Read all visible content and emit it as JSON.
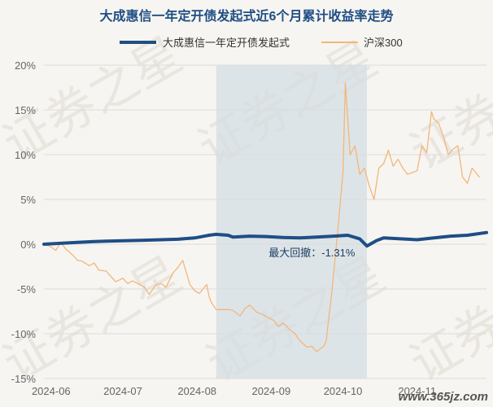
{
  "chart_data": {
    "type": "line",
    "title": "大成惠信一年定开债发起式近6个月累计收益率走势",
    "legend_position": "top-center",
    "grid": "horizontal",
    "ylim": [
      -15,
      20
    ],
    "y_ticks": [
      "20%",
      "15%",
      "10%",
      "5%",
      "0%",
      "-5%",
      "-10%",
      "-15%"
    ],
    "x_ticks": [
      "2024-06",
      "2024-07",
      "2024-08",
      "2024-09",
      "2024-10",
      "2024-11"
    ],
    "x_range": [
      "2024-05-29",
      "2024-11-30"
    ],
    "series": [
      {
        "name": "大成惠信一年定开债发起式",
        "color": "#1f4e85",
        "points": [
          [
            "2024-05-29",
            0.0
          ],
          [
            "2024-06-05",
            0.1
          ],
          [
            "2024-06-12",
            0.2
          ],
          [
            "2024-06-19",
            0.3
          ],
          [
            "2024-06-26",
            0.35
          ],
          [
            "2024-07-03",
            0.4
          ],
          [
            "2024-07-10",
            0.45
          ],
          [
            "2024-07-17",
            0.5
          ],
          [
            "2024-07-24",
            0.55
          ],
          [
            "2024-07-31",
            0.7
          ],
          [
            "2024-08-06",
            1.0
          ],
          [
            "2024-08-09",
            1.1
          ],
          [
            "2024-08-14",
            1.0
          ],
          [
            "2024-08-16",
            0.8
          ],
          [
            "2024-08-23",
            0.9
          ],
          [
            "2024-08-30",
            0.85
          ],
          [
            "2024-09-06",
            0.75
          ],
          [
            "2024-09-13",
            0.7
          ],
          [
            "2024-09-20",
            0.8
          ],
          [
            "2024-09-27",
            0.9
          ],
          [
            "2024-10-03",
            1.0
          ],
          [
            "2024-10-08",
            0.6
          ],
          [
            "2024-10-11",
            -0.2
          ],
          [
            "2024-10-15",
            0.4
          ],
          [
            "2024-10-18",
            0.7
          ],
          [
            "2024-10-25",
            0.6
          ],
          [
            "2024-11-01",
            0.5
          ],
          [
            "2024-11-08",
            0.7
          ],
          [
            "2024-11-15",
            0.9
          ],
          [
            "2024-11-22",
            1.0
          ],
          [
            "2024-11-30",
            1.3
          ]
        ]
      },
      {
        "name": "沪深300",
        "color": "#f3b67a",
        "points": [
          [
            "2024-05-29",
            0.0
          ],
          [
            "2024-06-01",
            -0.3
          ],
          [
            "2024-06-03",
            -0.7
          ],
          [
            "2024-06-05",
            0.2
          ],
          [
            "2024-06-07",
            -0.5
          ],
          [
            "2024-06-10",
            -1.2
          ],
          [
            "2024-06-12",
            -1.8
          ],
          [
            "2024-06-14",
            -1.9
          ],
          [
            "2024-06-17",
            -2.4
          ],
          [
            "2024-06-19",
            -2.1
          ],
          [
            "2024-06-21",
            -2.9
          ],
          [
            "2024-06-24",
            -3.0
          ],
          [
            "2024-06-26",
            -3.6
          ],
          [
            "2024-06-28",
            -4.2
          ],
          [
            "2024-07-01",
            -3.8
          ],
          [
            "2024-07-03",
            -4.4
          ],
          [
            "2024-07-05",
            -4.1
          ],
          [
            "2024-07-08",
            -4.5
          ],
          [
            "2024-07-10",
            -4.8
          ],
          [
            "2024-07-12",
            -5.6
          ],
          [
            "2024-07-15",
            -4.5
          ],
          [
            "2024-07-17",
            -4.4
          ],
          [
            "2024-07-19",
            -4.8
          ],
          [
            "2024-07-22",
            -3.2
          ],
          [
            "2024-07-24",
            -2.6
          ],
          [
            "2024-07-26",
            -1.8
          ],
          [
            "2024-07-29",
            -4.5
          ],
          [
            "2024-07-31",
            -5.2
          ],
          [
            "2024-08-02",
            -5.5
          ],
          [
            "2024-08-05",
            -4.5
          ],
          [
            "2024-08-06",
            -5.8
          ],
          [
            "2024-08-07",
            -6.5
          ],
          [
            "2024-08-09",
            -7.3
          ],
          [
            "2024-08-14",
            -7.3
          ],
          [
            "2024-08-16",
            -7.4
          ],
          [
            "2024-08-19",
            -8.0
          ],
          [
            "2024-08-21",
            -7.2
          ],
          [
            "2024-08-23",
            -6.8
          ],
          [
            "2024-08-26",
            -7.6
          ],
          [
            "2024-08-28",
            -7.8
          ],
          [
            "2024-08-30",
            -8.1
          ],
          [
            "2024-09-02",
            -8.5
          ],
          [
            "2024-09-04",
            -9.2
          ],
          [
            "2024-09-06",
            -8.8
          ],
          [
            "2024-09-09",
            -9.6
          ],
          [
            "2024-09-11",
            -10.0
          ],
          [
            "2024-09-13",
            -10.8
          ],
          [
            "2024-09-16",
            -11.5
          ],
          [
            "2024-09-18",
            -11.4
          ],
          [
            "2024-09-20",
            -12.0
          ],
          [
            "2024-09-23",
            -11.4
          ],
          [
            "2024-09-24",
            -10.8
          ],
          [
            "2024-09-25",
            -8.4
          ],
          [
            "2024-09-26",
            -6.2
          ],
          [
            "2024-09-27",
            -3.6
          ],
          [
            "2024-09-29",
            2.0
          ],
          [
            "2024-10-01",
            8.0
          ],
          [
            "2024-10-02",
            18.0
          ],
          [
            "2024-10-04",
            10.0
          ],
          [
            "2024-10-06",
            11.0
          ],
          [
            "2024-10-08",
            7.8
          ],
          [
            "2024-10-10",
            8.5
          ],
          [
            "2024-10-12",
            6.5
          ],
          [
            "2024-10-14",
            5.0
          ],
          [
            "2024-10-16",
            8.5
          ],
          [
            "2024-10-18",
            9.0
          ],
          [
            "2024-10-20",
            10.5
          ],
          [
            "2024-10-22",
            8.7
          ],
          [
            "2024-10-24",
            9.5
          ],
          [
            "2024-10-26",
            8.5
          ],
          [
            "2024-10-28",
            7.8
          ],
          [
            "2024-10-30",
            8.0
          ],
          [
            "2024-11-01",
            8.2
          ],
          [
            "2024-11-03",
            11.0
          ],
          [
            "2024-11-05",
            10.2
          ],
          [
            "2024-11-06",
            12.5
          ],
          [
            "2024-11-07",
            14.8
          ],
          [
            "2024-11-08",
            14.0
          ],
          [
            "2024-11-10",
            13.5
          ],
          [
            "2024-11-12",
            12.0
          ],
          [
            "2024-11-14",
            10.0
          ],
          [
            "2024-11-16",
            10.6
          ],
          [
            "2024-11-18",
            11.0
          ],
          [
            "2024-11-20",
            7.5
          ],
          [
            "2024-11-22",
            6.8
          ],
          [
            "2024-11-24",
            8.5
          ],
          [
            "2024-11-27",
            7.5
          ]
        ]
      }
    ],
    "drawdown": {
      "label": "最大回撤：-1.31%",
      "start": "2024-08-09",
      "end": "2024-10-11",
      "shade_color": "#d4dde3"
    },
    "watermark_text": "证券之星",
    "corner_watermark": "www.365jz.com"
  }
}
